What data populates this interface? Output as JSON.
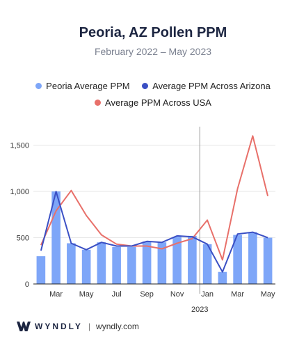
{
  "chart_data": {
    "type": "bar",
    "title": "Peoria, AZ Pollen PPM",
    "subtitle": "February 2022 – May 2023",
    "xlabel": "",
    "ylabel": "",
    "ylim": [
      0,
      1700
    ],
    "yticks": [
      0,
      500,
      1000,
      1500
    ],
    "ytick_labels": [
      "0",
      "500",
      "1,000",
      "1,500"
    ],
    "categories": [
      "Feb 2022",
      "Mar 2022",
      "Apr 2022",
      "May 2022",
      "Jun 2022",
      "Jul 2022",
      "Aug 2022",
      "Sep 2022",
      "Oct 2022",
      "Nov 2022",
      "Dec 2022",
      "Jan 2023",
      "Feb 2023",
      "Mar 2023",
      "Apr 2023",
      "May 2023"
    ],
    "x_tick_labels": [
      "",
      "Mar",
      "",
      "May",
      "",
      "Jul",
      "",
      "Sep",
      "",
      "Nov",
      "",
      "Jan",
      "",
      "Mar",
      "",
      "May"
    ],
    "year_label": "2023",
    "year_divider_index": 11,
    "series": [
      {
        "name": "Peoria Average PPM",
        "kind": "bar",
        "color": "#7ea6f8",
        "values": [
          300,
          1000,
          440,
          370,
          450,
          400,
          400,
          460,
          450,
          510,
          520,
          430,
          130,
          530,
          560,
          500
        ]
      },
      {
        "name": "Average PPM Across Arizona",
        "kind": "line",
        "color": "#3a4fc4",
        "values": [
          360,
          1000,
          440,
          370,
          450,
          410,
          410,
          460,
          450,
          520,
          510,
          430,
          130,
          540,
          560,
          500
        ]
      },
      {
        "name": "Average PPM Across USA",
        "kind": "line",
        "color": "#e8706a",
        "values": [
          420,
          790,
          1010,
          740,
          530,
          430,
          410,
          410,
          380,
          440,
          490,
          690,
          260,
          1030,
          1600,
          950
        ]
      }
    ]
  },
  "footer": {
    "brand": "WYNDLY",
    "separator": "|",
    "site": "wyndly.com"
  }
}
